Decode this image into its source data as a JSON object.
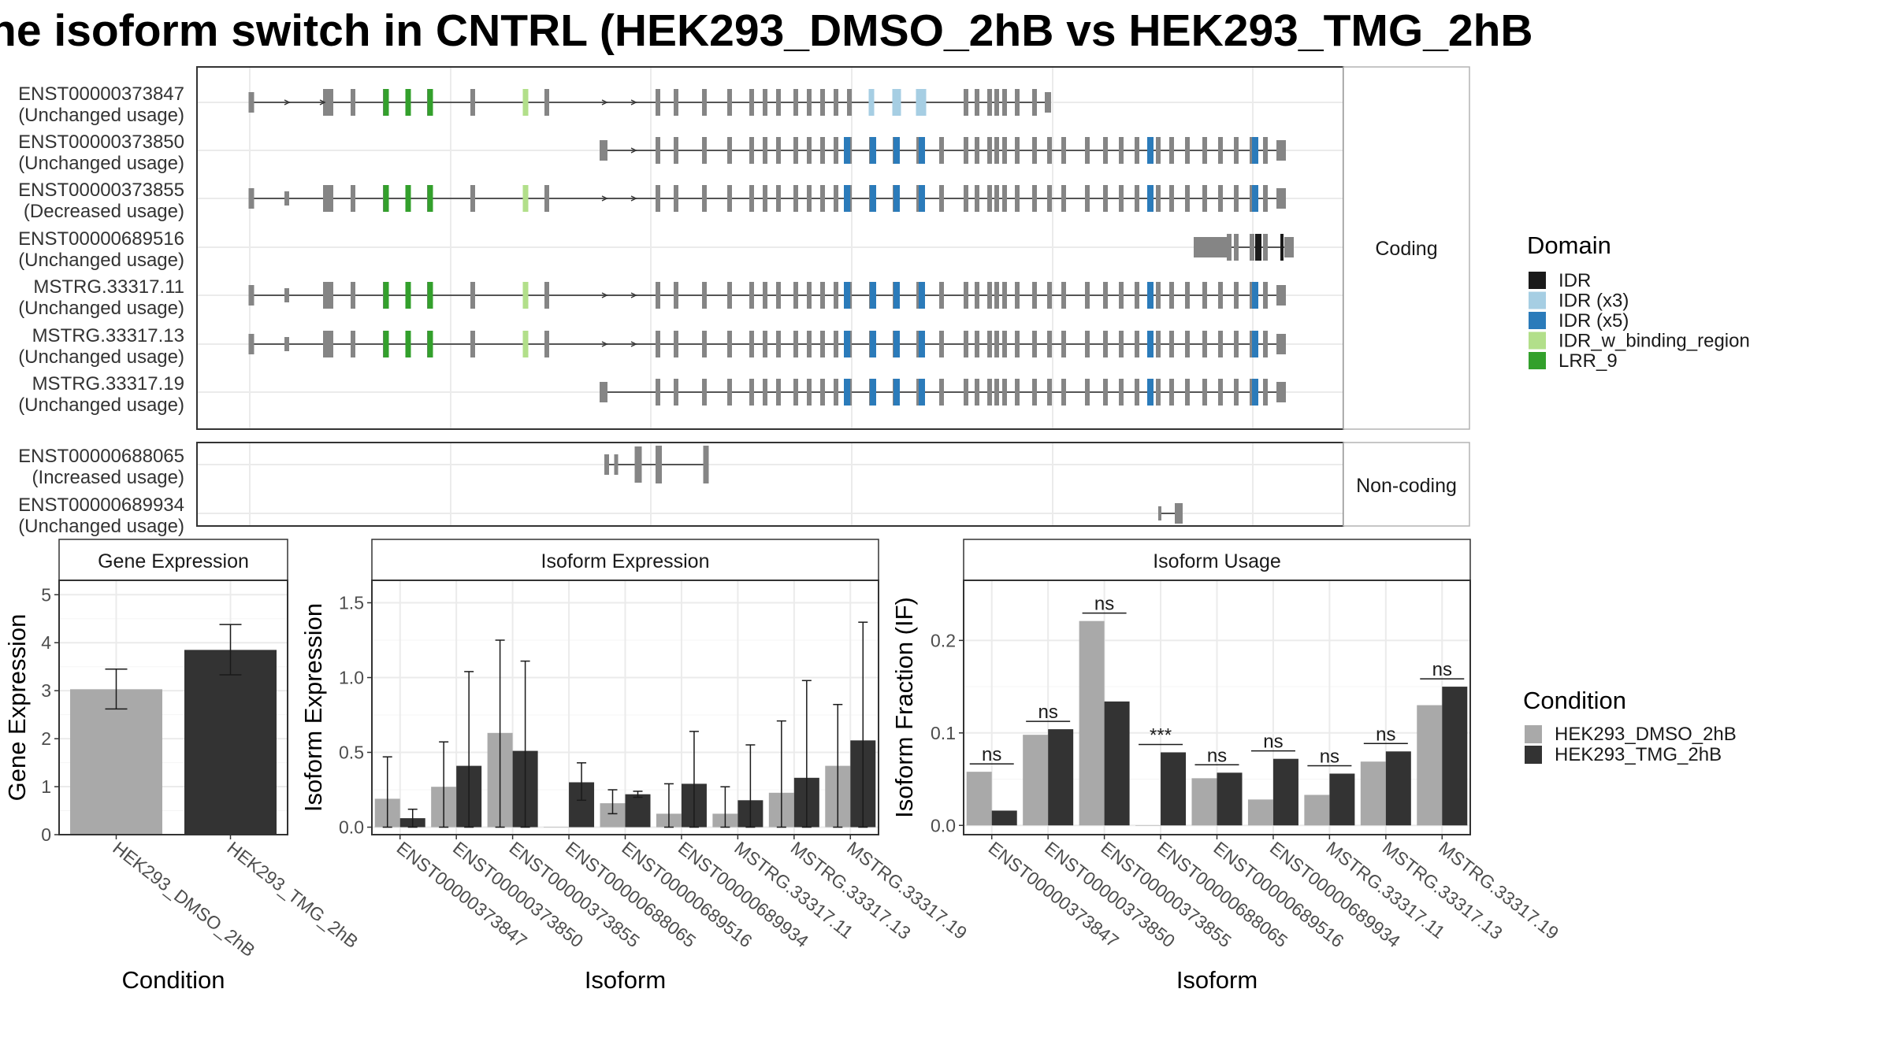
{
  "title": "he isoform switch in CNTRL (HEK293_DMSO_2hB vs HEK293_TMG_2hB",
  "colors": {
    "idr": "#1a1a1a",
    "idr_x3": "#a6cee3",
    "idr_x5": "#2b7bba",
    "idr_w_binding_region": "#b2df8a",
    "lrr_9": "#33a02c",
    "exon": "#858585",
    "dmso": "#a9a9a9",
    "tmg": "#333333"
  },
  "transcripts": {
    "coding_label": "Coding",
    "noncoding_label": "Non-coding",
    "coding": [
      {
        "id": "ENST00000373847",
        "status": "(Unchanged usage)"
      },
      {
        "id": "ENST00000373850",
        "status": "(Unchanged usage)"
      },
      {
        "id": "ENST00000373855",
        "status": "(Decreased usage)"
      },
      {
        "id": "ENST00000689516",
        "status": "(Unchanged usage)"
      },
      {
        "id": "MSTRG.33317.11",
        "status": "(Unchanged usage)"
      },
      {
        "id": "MSTRG.33317.13",
        "status": "(Unchanged usage)"
      },
      {
        "id": "MSTRG.33317.19",
        "status": "(Unchanged usage)"
      }
    ],
    "noncoding": [
      {
        "id": "ENST00000688065",
        "status": "(Increased usage)"
      },
      {
        "id": "ENST00000689934",
        "status": "(Unchanged usage)"
      }
    ]
  },
  "legend_domain": {
    "title": "Domain",
    "items": [
      {
        "label": "IDR",
        "color": "#1a1a1a"
      },
      {
        "label": "IDR (x3)",
        "color": "#a6cee3"
      },
      {
        "label": "IDR (x5)",
        "color": "#2b7bba"
      },
      {
        "label": "IDR_w_binding_region",
        "color": "#b2df8a"
      },
      {
        "label": "LRR_9",
        "color": "#33a02c"
      }
    ]
  },
  "legend_condition": {
    "title": "Condition",
    "items": [
      {
        "label": "HEK293_DMSO_2hB",
        "color": "#a9a9a9"
      },
      {
        "label": "HEK293_TMG_2hB",
        "color": "#333333"
      }
    ]
  },
  "chart_data": [
    {
      "type": "bar",
      "panel": "Gene Expression",
      "xlabel": "Condition",
      "ylabel": "Gene Expression",
      "ylim": [
        0,
        5.3
      ],
      "yticks": [
        0,
        1,
        2,
        3,
        4,
        5
      ],
      "categories": [
        "HEK293_DMSO_2hB",
        "HEK293_TMG_2hB"
      ],
      "values": [
        3.03,
        3.85
      ],
      "err_low": [
        2.62,
        3.33
      ],
      "err_high": [
        3.45,
        4.38
      ]
    },
    {
      "type": "bar",
      "panel": "Isoform Expression",
      "xlabel": "Isoform",
      "ylabel": "Isoform Expression",
      "ylim": [
        -0.05,
        1.65
      ],
      "yticks": [
        0.0,
        0.5,
        1.0,
        1.5
      ],
      "categories": [
        "ENST00000373847",
        "ENST00000373850",
        "ENST00000373855",
        "ENST00000688065",
        "ENST00000689516",
        "ENST00000689934",
        "MSTRG.33317.11",
        "MSTRG.33317.13",
        "MSTRG.33317.19"
      ],
      "series": [
        {
          "name": "HEK293_DMSO_2hB",
          "values": [
            0.19,
            0.27,
            0.63,
            0.0,
            0.16,
            0.09,
            0.09,
            0.23,
            0.41
          ],
          "err_low": [
            0.0,
            0.0,
            0.0,
            0.0,
            0.09,
            0.0,
            0.0,
            0.0,
            0.0
          ],
          "err_high": [
            0.47,
            0.57,
            1.25,
            0.0,
            0.25,
            0.29,
            0.27,
            0.71,
            0.82
          ]
        },
        {
          "name": "HEK293_TMG_2hB",
          "values": [
            0.06,
            0.41,
            0.51,
            0.3,
            0.22,
            0.29,
            0.18,
            0.33,
            0.58
          ],
          "err_low": [
            0.0,
            0.0,
            0.0,
            0.18,
            0.2,
            0.0,
            0.0,
            0.0,
            0.0
          ],
          "err_high": [
            0.12,
            1.04,
            1.11,
            0.43,
            0.24,
            0.64,
            0.55,
            0.98,
            1.37
          ]
        }
      ]
    },
    {
      "type": "bar",
      "panel": "Isoform Usage",
      "xlabel": "Isoform",
      "ylabel": "Isoform Fraction (IF)",
      "ylim": [
        -0.01,
        0.265
      ],
      "yticks": [
        0.0,
        0.1,
        0.2
      ],
      "categories": [
        "ENST00000373847",
        "ENST00000373850",
        "ENST00000373855",
        "ENST00000688065",
        "ENST00000689516",
        "ENST00000689934",
        "MSTRG.33317.11",
        "MSTRG.33317.13",
        "MSTRG.33317.19"
      ],
      "series": [
        {
          "name": "HEK293_DMSO_2hB",
          "values": [
            0.058,
            0.098,
            0.221,
            0.0,
            0.051,
            0.028,
            0.033,
            0.069,
            0.13
          ]
        },
        {
          "name": "HEK293_TMG_2hB",
          "values": [
            0.016,
            0.104,
            0.134,
            0.079,
            0.057,
            0.072,
            0.056,
            0.08,
            0.15
          ]
        }
      ],
      "significance": [
        "ns",
        "ns",
        "ns",
        "***",
        "ns",
        "ns",
        "ns",
        "ns",
        "ns"
      ]
    }
  ]
}
